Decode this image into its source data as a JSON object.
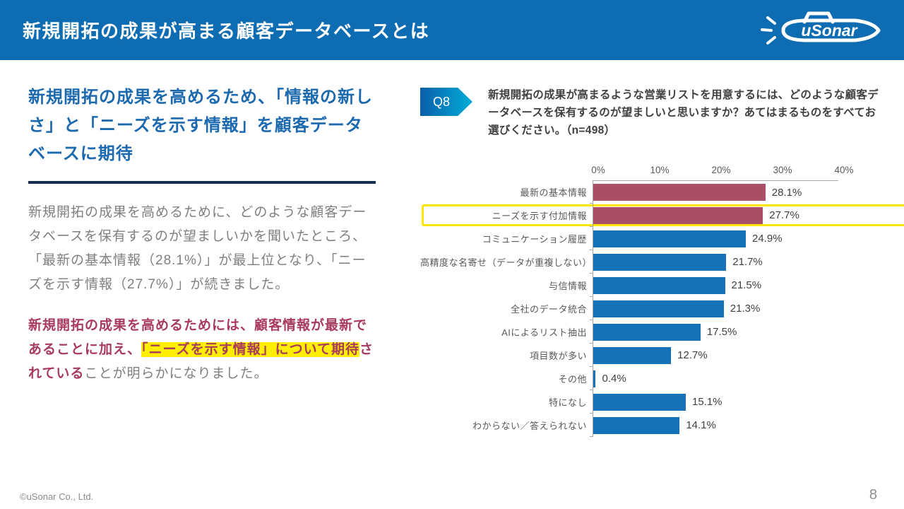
{
  "header": {
    "title": "新規開拓の成果が高まる顧客データベースとは",
    "logo_text": "uSonar"
  },
  "left": {
    "heading": "新規開拓の成果を高めるため、「情報の新しさ」と「ニーズを示す情報」を顧客データベースに期待",
    "paragraph": "新規開拓の成果を高めるために、どのような顧客データベースを保有するのが望ましいかを聞いたところ、「最新の基本情報（28.1%）」が最上位となり、「ニーズを示す情報（27.7%）」が続きました。",
    "conclusion": {
      "lead": "新規開拓の成果を高めるためには、顧客情報が最新であることに加え、",
      "highlight": "「ニーズを示す情報」について期待",
      "after_highlight": "されている",
      "tail": "ことが明らかになりました。"
    }
  },
  "question": {
    "badge": "Q8",
    "text": "新規開拓の成果が高まるような営業リストを用意するには、どのような顧客データベースを保有するのが望ましいと思いますか？あてはまるものをすべてお選びください。（n=498）"
  },
  "chart_data": {
    "type": "bar",
    "orientation": "horizontal",
    "title": "",
    "xlabel": "",
    "ylabel": "",
    "xlim": [
      0,
      40
    ],
    "x_ticks": [
      "0%",
      "10%",
      "20%",
      "30%",
      "40%"
    ],
    "grid": false,
    "categories": [
      "最新の基本情報",
      "ニーズを示す付加情報",
      "コミュニケーション履歴",
      "高精度な名寄せ（データが重複しない）",
      "与信情報",
      "全社のデータ統合",
      "AIによるリスト抽出",
      "項目数が多い",
      "その他",
      "特になし",
      "わからない／答えられない"
    ],
    "values": [
      28.1,
      27.7,
      24.9,
      21.7,
      21.5,
      21.3,
      17.5,
      12.7,
      0.4,
      15.1,
      14.1
    ],
    "value_suffix": "%",
    "bar_color_default": "#1572b6",
    "bar_color_emphasis": "#a84f67",
    "emphasis_indices": [
      0,
      1
    ],
    "boxed_row_index": 1,
    "box_color": "#ffe600"
  },
  "colors": {
    "header_bar": "#0e6cb2",
    "heading_text": "#1b69ae",
    "divider": "#16304f",
    "body_text": "#7f7f7f",
    "conclusion_red": "#a83a5e",
    "text_highlight": "#ffee00",
    "badge_gradient_start": "#0a5fa8",
    "badge_gradient_end": "#00aed9"
  },
  "footer": {
    "copyright": "©uSonar Co., Ltd.",
    "page_number": "8"
  }
}
